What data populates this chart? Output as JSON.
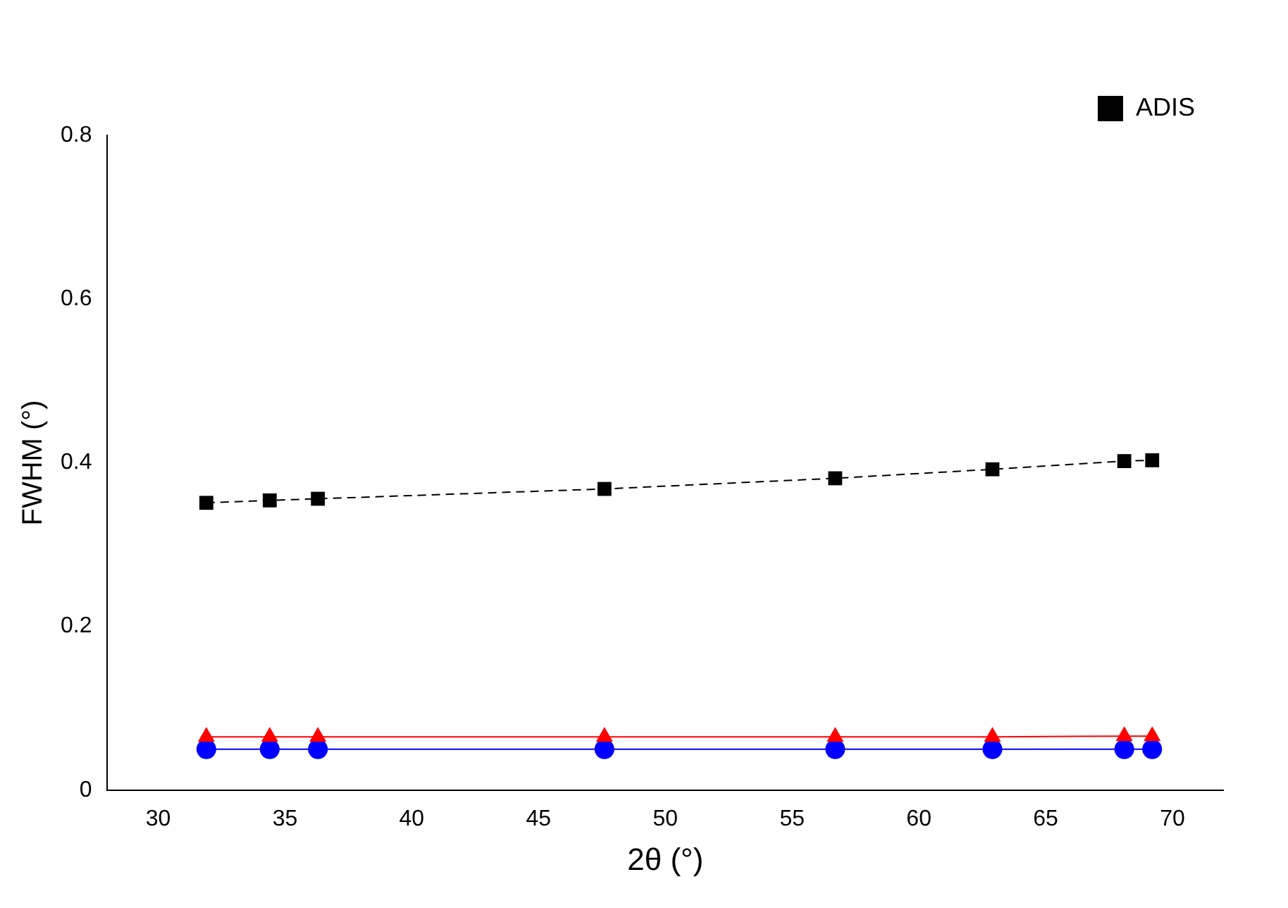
{
  "chart_data": {
    "type": "line",
    "xlabel": "2θ (°)",
    "ylabel": "FWHM (°)",
    "x": [
      31.9,
      34.4,
      36.3,
      47.6,
      56.7,
      62.9,
      68.1,
      69.2
    ],
    "series": [
      {
        "color": "#ff0000",
        "marker": "triangle",
        "line_style": "solid",
        "values": [
          0.065,
          0.065,
          0.065,
          0.065,
          0.065,
          0.065,
          0.066,
          0.066
        ]
      },
      {
        "color": "#0000ff",
        "marker": "circle",
        "line_style": "solid",
        "values": [
          0.05,
          0.05,
          0.05,
          0.05,
          0.05,
          0.05,
          0.05,
          0.05
        ]
      },
      {
        "name": "ADIS",
        "color": "#000000",
        "marker": "square",
        "line_style": "dashed",
        "values": [
          0.351,
          0.354,
          0.356,
          0.368,
          0.381,
          0.392,
          0.402,
          0.403
        ]
      }
    ],
    "xlim": [
      28,
      72
    ],
    "xticks": [
      30,
      35,
      40,
      45,
      50,
      55,
      60,
      65,
      70
    ],
    "ylim": [
      0,
      0.8
    ],
    "yticks": [
      0,
      0.2,
      0.4,
      0.6,
      0.8
    ],
    "grid": false,
    "legend": "top right"
  }
}
